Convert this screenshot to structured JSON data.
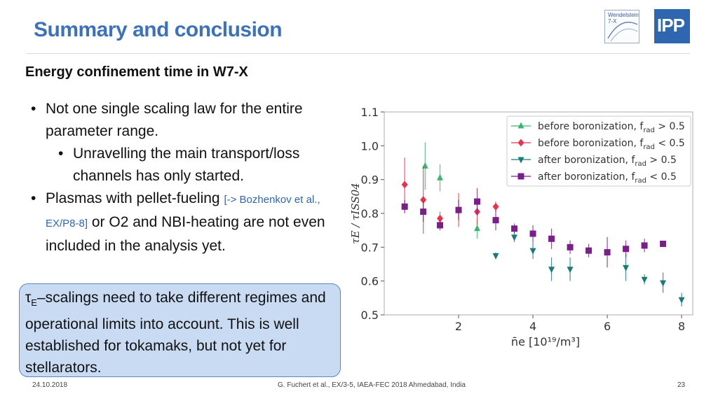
{
  "title": "Summary and conclusion",
  "logos": {
    "w7x_line1": "Wendelstein",
    "w7x_line2": "7-X",
    "ipp": "IPP"
  },
  "subheading": "Energy confinement time in W7-X",
  "bullets": {
    "b1": "Not one single scaling law for the entire parameter range.",
    "b2": "Unravelling the main transport/loss channels has only started.",
    "b3_pre": "Plasmas with pellet-fueling ",
    "b3_ref": "[-> Bozhenkov et al., EX/P8-8]",
    "b3_post": " or O2 and NBI-heating are not even included in the analysis yet."
  },
  "box": {
    "tau": "τ",
    "tau_sub": "E",
    "text": "–scalings need to take different regimes and operational limits into account. This is well established for tokamaks, but not yet for stellarators."
  },
  "footer": {
    "date": "24.10.2018",
    "citation": "G. Fuchert et al., EX/3-5, IAEA-FEC 2018 Ahmedabad, India",
    "page": "23"
  },
  "chart_data": {
    "type": "scatter",
    "xlabel": "n̄e [10¹⁹/m³]",
    "ylabel": "τE / τISS04",
    "xlim": [
      0,
      8.3
    ],
    "ylim": [
      0.5,
      1.1
    ],
    "xticks": [
      2,
      4,
      6,
      8
    ],
    "yticks": [
      0.5,
      0.6,
      0.7,
      0.8,
      0.9,
      1.0,
      1.1
    ],
    "legend_position": "top-right",
    "series": [
      {
        "name": "before boronization, f_rad > 0.5",
        "legend_main": "before boronization,  f",
        "legend_sub": "rad",
        "legend_cond": " > 0.5",
        "color": "#3cb371",
        "marker": "triangle-up",
        "points": [
          {
            "x": 1.1,
            "y": 0.94,
            "err": 0.07
          },
          {
            "x": 1.5,
            "y": 0.905,
            "err": 0.04
          },
          {
            "x": 2.5,
            "y": 0.755,
            "err": 0.03
          }
        ]
      },
      {
        "name": "before boronization, f_rad < 0.5",
        "legend_main": "before boronization,  f",
        "legend_sub": "rad",
        "legend_cond": " < 0.5",
        "color": "#e8324f",
        "marker": "diamond",
        "points": [
          {
            "x": 0.55,
            "y": 0.885,
            "err": 0.08
          },
          {
            "x": 1.05,
            "y": 0.84,
            "err": 0.1
          },
          {
            "x": 1.5,
            "y": 0.785,
            "err": 0.02
          },
          {
            "x": 2.0,
            "y": 0.81,
            "err": 0.05
          },
          {
            "x": 2.5,
            "y": 0.805,
            "err": 0.04
          },
          {
            "x": 3.0,
            "y": 0.82,
            "err": 0.015
          }
        ]
      },
      {
        "name": "after boronization, f_rad > 0.5",
        "legend_main": "after boronization,  f",
        "legend_sub": "rad",
        "legend_cond": " > 0.5",
        "color": "#1b7a7a",
        "marker": "triangle-down",
        "points": [
          {
            "x": 3.0,
            "y": 0.675,
            "err": 0.01
          },
          {
            "x": 3.5,
            "y": 0.73,
            "err": 0.015
          },
          {
            "x": 4.0,
            "y": 0.69,
            "err": 0.025
          },
          {
            "x": 4.5,
            "y": 0.635,
            "err": 0.035
          },
          {
            "x": 5.0,
            "y": 0.635,
            "err": 0.035
          },
          {
            "x": 6.5,
            "y": 0.64,
            "err": 0.04
          },
          {
            "x": 7.0,
            "y": 0.605,
            "err": 0.015
          },
          {
            "x": 7.5,
            "y": 0.595,
            "err": 0.03
          },
          {
            "x": 8.0,
            "y": 0.545,
            "err": 0.02
          }
        ]
      },
      {
        "name": "after boronization, f_rad < 0.5",
        "legend_main": "after boronization,  f",
        "legend_sub": "rad",
        "legend_cond": " < 0.5",
        "color": "#7a1f8a",
        "marker": "square",
        "points": [
          {
            "x": 0.55,
            "y": 0.82,
            "err": 0.02
          },
          {
            "x": 1.05,
            "y": 0.805,
            "err": 0.03
          },
          {
            "x": 1.5,
            "y": 0.765,
            "err": 0.015
          },
          {
            "x": 2.0,
            "y": 0.81,
            "err": 0.03
          },
          {
            "x": 2.5,
            "y": 0.835,
            "err": 0.04
          },
          {
            "x": 3.0,
            "y": 0.78,
            "err": 0.03
          },
          {
            "x": 3.5,
            "y": 0.755,
            "err": 0.015
          },
          {
            "x": 4.0,
            "y": 0.74,
            "err": 0.025
          },
          {
            "x": 4.5,
            "y": 0.725,
            "err": 0.03
          },
          {
            "x": 5.0,
            "y": 0.7,
            "err": 0.02
          },
          {
            "x": 5.5,
            "y": 0.69,
            "err": 0.02
          },
          {
            "x": 6.0,
            "y": 0.685,
            "err": 0.045
          },
          {
            "x": 6.5,
            "y": 0.695,
            "err": 0.025
          },
          {
            "x": 7.0,
            "y": 0.705,
            "err": 0.02
          },
          {
            "x": 7.5,
            "y": 0.71,
            "err": 0.005
          }
        ]
      }
    ]
  }
}
